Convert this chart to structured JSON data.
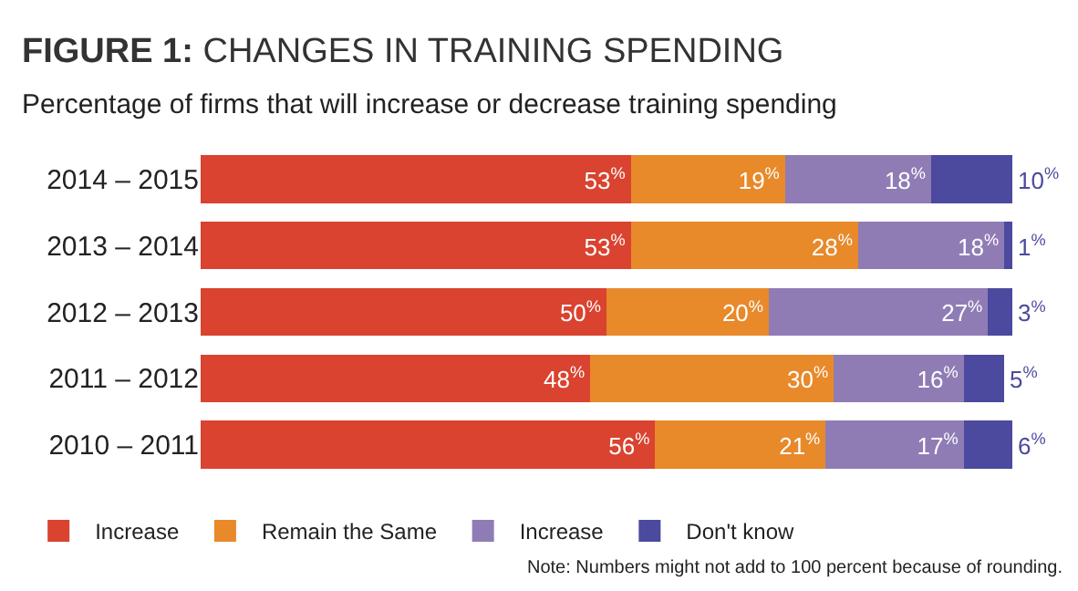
{
  "chart_data": {
    "type": "bar",
    "orientation": "horizontal",
    "stacked": true,
    "title": "FIGURE 1: CHANGES IN TRAINING SPENDING",
    "subtitle": "Percentage of firms that will increase or decrease training spending",
    "categories": [
      "2014 – 2015",
      "2013 – 2014",
      "2012 – 2013",
      "2011 – 2012",
      "2010 – 2011"
    ],
    "series": [
      {
        "name": "Increase",
        "color": "#d9432f",
        "values": [
          53,
          53,
          50,
          48,
          56
        ],
        "value_labels": [
          "53$^{%}$",
          "53$^{%}$",
          "50$^{%}$",
          "48$^{%}$",
          "56$^{%}$"
        ]
      },
      {
        "name": "Remain the Same",
        "color": "#e8892a",
        "values": [
          19,
          28,
          20,
          30,
          21
        ],
        "value_labels": [
          "19$^{%}$",
          "28$^{%}$",
          "20$^{%}$",
          "30$^{%}$",
          "21$^{%}$"
        ]
      },
      {
        "name": "Increase",
        "color": "#8f7cb5",
        "values": [
          18,
          18,
          27,
          16,
          17
        ],
        "value_labels": [
          "18$^{%}$",
          "18$^{%}$",
          "27$^{%}$",
          "16$^{%}$",
          "17$^{%}$"
        ]
      },
      {
        "name": "Don't know",
        "color": "#4b4a9e",
        "values": [
          10,
          1,
          3,
          5,
          6
        ],
        "value_labels": [
          "10$^{%}$",
          "1$^{%}$",
          "3$^{%}$",
          "5$^{%}$",
          "6$^{%}$"
        ]
      }
    ],
    "xlim": [
      0,
      100
    ],
    "tick_labels": "y",
    "legend": "bottom left",
    "annotations": [
      "Note: Numbers might not add to 100 percent because of rounding."
    ]
  }
}
